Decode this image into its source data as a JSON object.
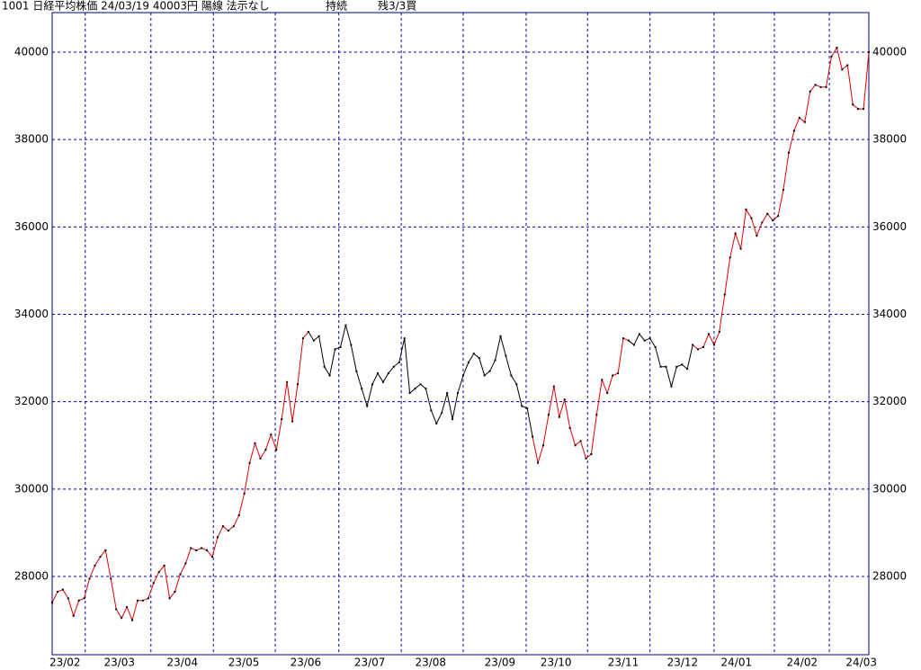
{
  "header": [
    "1001 日経平均株価 24/03/19 40003円 陽線 法示なし",
    "持続",
    "残3/3買"
  ],
  "chart_data": {
    "type": "line",
    "values": [
      27400,
      27650,
      27700,
      27500,
      27100,
      27450,
      27500,
      27950,
      28250,
      28450,
      28600,
      27950,
      27250,
      27050,
      27300,
      27000,
      27450,
      27450,
      27500,
      27850,
      28100,
      28250,
      27500,
      27650,
      28050,
      28300,
      28650,
      28600,
      28650,
      28600,
      28450,
      28900,
      29150,
      29050,
      29150,
      29400,
      29900,
      30600,
      31050,
      30700,
      30900,
      31250,
      30900,
      31600,
      32450,
      31550,
      32400,
      33450,
      33600,
      33400,
      33500,
      32800,
      32600,
      33200,
      33250,
      33750,
      33300,
      32700,
      32300,
      31900,
      32400,
      32650,
      32450,
      32650,
      32800,
      32900,
      33450,
      32200,
      32300,
      32400,
      32300,
      31800,
      31500,
      31750,
      32200,
      31600,
      32200,
      32600,
      32900,
      33100,
      33000,
      32600,
      32700,
      32950,
      33500,
      33050,
      32600,
      32400,
      31900,
      31850,
      31200,
      30600,
      31000,
      31700,
      32350,
      31650,
      32050,
      31400,
      31000,
      31100,
      30700,
      30800,
      31700,
      32500,
      32200,
      32600,
      32650,
      33450,
      33400,
      33300,
      33550,
      33400,
      33450,
      33250,
      32800,
      32800,
      32350,
      32800,
      32850,
      32750,
      33300,
      33200,
      33250,
      33550,
      33300,
      33600,
      34450,
      35300,
      35850,
      35500,
      36400,
      36200,
      35800,
      36100,
      36300,
      36150,
      36250,
      36850,
      37700,
      38200,
      38500,
      38400,
      39100,
      39250,
      39200,
      39200,
      39900,
      40100,
      39600,
      39700,
      38800,
      38700,
      38700,
      40000
    ],
    "segments": [
      {
        "start": 0,
        "end": 48,
        "color": "#e00000"
      },
      {
        "start": 48,
        "end": 90,
        "color": "#000000"
      },
      {
        "start": 90,
        "end": 108,
        "color": "#e00000"
      },
      {
        "start": 108,
        "end": 120,
        "color": "#000000"
      },
      {
        "start": 120,
        "end": 153,
        "color": "#e00000"
      }
    ],
    "marker_color": "#000000",
    "xlim": [
      0,
      153
    ],
    "xgrid": [
      6.2,
      18.5,
      30.2,
      41.8,
      53.7,
      65.4,
      77.0,
      88.8,
      100.3,
      112.0,
      124.0,
      135.3,
      145.6
    ],
    "xticks": [
      {
        "value": 2.4,
        "label": "23/02"
      },
      {
        "value": 12.6,
        "label": "23/03"
      },
      {
        "value": 24.4,
        "label": "23/04"
      },
      {
        "value": 35.9,
        "label": "23/05"
      },
      {
        "value": 47.5,
        "label": "23/06"
      },
      {
        "value": 59.5,
        "label": "23/07"
      },
      {
        "value": 70.9,
        "label": "23/08"
      },
      {
        "value": 83.9,
        "label": "23/09"
      },
      {
        "value": 94.4,
        "label": "23/10"
      },
      {
        "value": 107,
        "label": "23/11"
      },
      {
        "value": 118.1,
        "label": "23/12"
      },
      {
        "value": 128.2,
        "label": "24/01"
      },
      {
        "value": 140.5,
        "label": "24/02"
      },
      {
        "value": 151.6,
        "label": "24/03"
      }
    ],
    "ylim": [
      26210,
      40905
    ],
    "yticks": [
      28000,
      30000,
      32000,
      34000,
      36000,
      38000,
      40000
    ],
    "grid": true
  }
}
